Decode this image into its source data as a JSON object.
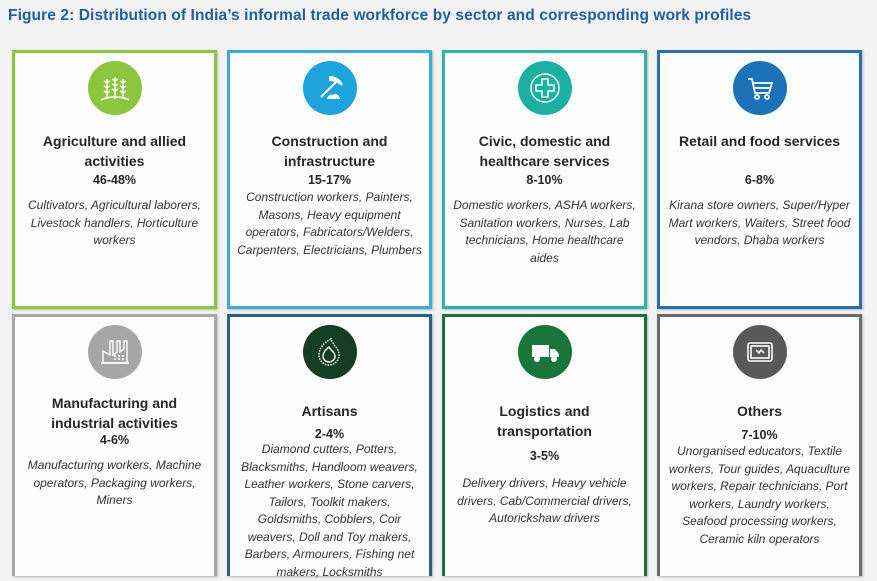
{
  "title": "Figure 2: Distribution of India’s informal trade workforce by sector and corresponding work profiles",
  "cards": [
    {
      "heading": "Agriculture and allied activities",
      "percent": "46-48%",
      "roles": "Cultivators, Agricultural laborers, Livestock handlers, Horticulture workers",
      "icon": "wheat-icon",
      "color": "#8cc63f",
      "border": "#8cc63f"
    },
    {
      "heading": "Construction and infrastructure",
      "percent": "15-17%",
      "roles": "Construction workers, Painters, Masons, Heavy equipment operators, Fabricators/Welders, Carpenters, Electricians, Plumbers",
      "icon": "pickaxe-icon",
      "color": "#1fa3dc",
      "border": "#3fa9d8"
    },
    {
      "heading": "Civic, domestic and healthcare services",
      "percent": "8-10%",
      "roles": "Domestic workers, ASHA workers, Sanitation workers, Nurses, Lab technicians, Home healthcare aides",
      "icon": "medical-cross-icon",
      "color": "#1cb0a0",
      "border": "#2ab3a6"
    },
    {
      "heading": "Retail and food services",
      "percent": "6-8%",
      "roles": "Kirana store owners, Super/Hyper Mart workers, Waiters, Street food vendors, Dhaba workers",
      "icon": "shopping-cart-icon",
      "color": "#1b72b8",
      "border": "#2a6fae"
    },
    {
      "heading": "Manufacturing and industrial activities",
      "percent": "4-6%",
      "roles": "Manufacturing workers, Machine operators, Packaging workers, Miners",
      "icon": "factory-icon",
      "color": "#a6a6a6",
      "border": "#a6a6a6"
    },
    {
      "heading": "Artisans",
      "percent": "2-4%",
      "roles": "Diamond cutters, Potters, Blacksmiths, Handloom weavers, Leather workers, Stone carvers, Tailors, Toolkit makers, Goldsmiths, Cobblers, Coir weavers, Doll and Toy makers, Barbers, Armourers, Fishing net makers, Locksmiths",
      "icon": "paisley-icon",
      "color": "#143d24",
      "border": "#2d5f80"
    },
    {
      "heading": "Logistics and transportation",
      "percent": "3-5%",
      "roles": "Delivery drivers, Heavy vehicle drivers, Cab/Commercial drivers, Autorickshaw drivers",
      "icon": "truck-icon",
      "color": "#18763c",
      "border": "#1f6e3f"
    },
    {
      "heading": "Others",
      "percent": "7-10%",
      "roles": "Unorganised educators, Textile workers, Tour guides, Aquaculture workers, Repair technicians, Port workers, Laundry workers, Seafood processing workers, Ceramic kiln operators",
      "icon": "tablet-icon",
      "color": "#595959",
      "border": "#6b6b6b"
    }
  ]
}
